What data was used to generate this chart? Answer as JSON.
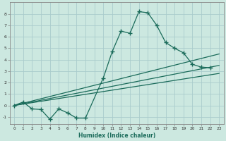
{
  "xlabel": "Humidex (Indice chaleur)",
  "ylabel": "",
  "background_color": "#cce8e0",
  "grid_color": "#aacccc",
  "line_color": "#1a6b5a",
  "xlim": [
    -0.5,
    23.5
  ],
  "ylim": [
    -1.6,
    9.0
  ],
  "xticks": [
    0,
    1,
    2,
    3,
    4,
    5,
    6,
    7,
    8,
    9,
    10,
    11,
    12,
    13,
    14,
    15,
    16,
    17,
    18,
    19,
    20,
    21,
    22,
    23
  ],
  "yticks": [
    -1,
    0,
    1,
    2,
    3,
    4,
    5,
    6,
    7,
    8
  ],
  "main_series": {
    "x": [
      0,
      1,
      2,
      3,
      4,
      5,
      6,
      7,
      8,
      10,
      11,
      12,
      13,
      14,
      15,
      16,
      17,
      18,
      19,
      20,
      21,
      22
    ],
    "y": [
      0.0,
      0.3,
      -0.3,
      -0.35,
      -1.2,
      -0.3,
      -0.65,
      -1.1,
      -1.1,
      2.4,
      4.7,
      6.5,
      6.3,
      8.2,
      8.1,
      7.0,
      5.5,
      5.0,
      4.6,
      3.6,
      3.35,
      3.3
    ]
  },
  "straight_lines": [
    {
      "x": [
        0,
        23
      ],
      "y": [
        0.0,
        3.5
      ]
    },
    {
      "x": [
        0,
        23
      ],
      "y": [
        0.0,
        2.8
      ]
    },
    {
      "x": [
        0,
        23
      ],
      "y": [
        0.0,
        4.5
      ]
    }
  ]
}
